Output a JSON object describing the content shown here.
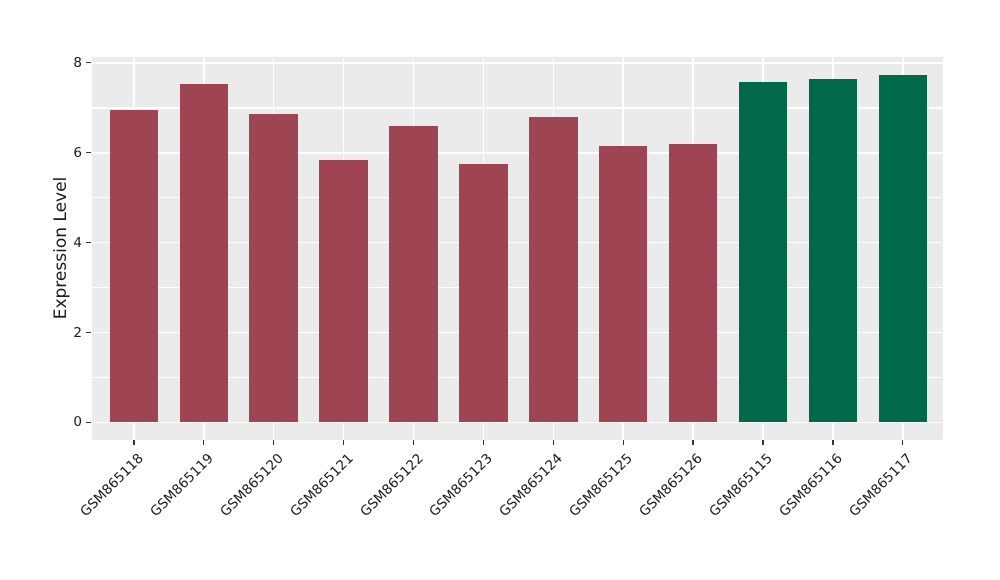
{
  "figure": {
    "background": "#FFFFFF"
  },
  "chart_data": {
    "type": "bar",
    "title": "",
    "xlabel": "",
    "ylabel": "Expression Level",
    "categories": [
      "GSM865118",
      "GSM865119",
      "GSM865120",
      "GSM865121",
      "GSM865122",
      "GSM865123",
      "GSM865124",
      "GSM865125",
      "GSM865126",
      "GSM865115",
      "GSM865116",
      "GSM865117"
    ],
    "values": [
      6.96,
      7.53,
      6.86,
      5.83,
      6.59,
      5.76,
      6.79,
      6.15,
      6.2,
      7.58,
      7.64,
      7.74
    ],
    "bar_colors": [
      "#9E4452",
      "#9E4452",
      "#9E4452",
      "#9E4452",
      "#9E4452",
      "#9E4452",
      "#9E4452",
      "#9E4452",
      "#9E4452",
      "#00684B",
      "#00684B",
      "#00684B"
    ],
    "group_colors": {
      "maroon": "#9E4452",
      "green": "#00684B"
    },
    "yticks": [
      0,
      2,
      4,
      6,
      8
    ],
    "ylim": [
      -0.39,
      8.13
    ],
    "grid": {
      "horizontal_every": 1,
      "color": "#FFFFFF"
    },
    "panel_background": "#EBEBEB",
    "tick_mark_color": "#333333",
    "text_color": "#1A1A1A",
    "x_tick_rotation_deg": 45,
    "legend": "none"
  }
}
